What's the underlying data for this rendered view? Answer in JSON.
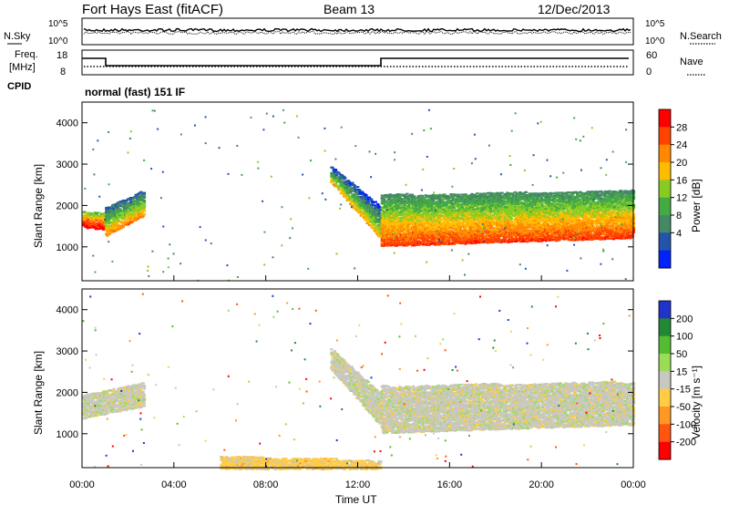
{
  "header": {
    "station": "Fort Hays East (fitACF)",
    "beam": "Beam 13",
    "date": "12/Dec/2013"
  },
  "noise_panel": {
    "left_label": "N.Sky",
    "right_label": "N.Search",
    "left_ticks": [
      "10^5",
      "10^0"
    ],
    "right_ticks": [
      "10^5",
      "10^0"
    ]
  },
  "freq_panel": {
    "left_label_1": "Freq.",
    "left_label_2": "[MHz]",
    "right_label": "Nave",
    "left_ticks": [
      "18",
      "8"
    ],
    "right_ticks": [
      "60",
      "0"
    ]
  },
  "cpid": {
    "label": "CPID",
    "value": "normal (fast) 151 IF"
  },
  "colorbars": {
    "power": {
      "title": "Power [dB]",
      "ticks": [
        "28",
        "24",
        "20",
        "16",
        "12",
        "8",
        "4"
      ],
      "colors": [
        "#ff0000",
        "#ff4400",
        "#ff8800",
        "#ffbb00",
        "#88cc22",
        "#44aa44",
        "#448866",
        "#2255aa",
        "#0022ff"
      ]
    },
    "velocity": {
      "title": "Velocity [m s⁻¹]",
      "ticks": [
        "200",
        "100",
        "50",
        "15",
        "-15",
        "-50",
        "-100",
        "-200"
      ],
      "colors": [
        "#2233cc",
        "#228833",
        "#55bb33",
        "#99dd55",
        "#c8c8c0",
        "#ffcc44",
        "#ff9922",
        "#ff5511",
        "#ff0000"
      ]
    }
  },
  "axes": {
    "ylabel": "Slant Range [km]",
    "xlabel": "Time UT",
    "yticks": [
      "4000",
      "3000",
      "2000",
      "1000"
    ],
    "xticks": [
      "00:00",
      "04:00",
      "08:00",
      "12:00",
      "16:00",
      "20:00",
      "00:00"
    ]
  },
  "chart_data": [
    {
      "type": "heatmap",
      "title": "",
      "quantity": "Power [dB]",
      "xlabel": "",
      "ylabel": "Slant Range [km]",
      "x_range_hours": [
        0,
        24
      ],
      "ylim": [
        180,
        4500
      ],
      "color_range": [
        0,
        30
      ],
      "bands": [
        {
          "x": [
            0.0,
            1.0
          ],
          "y_low": [
            1500,
            1450
          ],
          "y_high": [
            1900,
            1850
          ],
          "value": 22
        },
        {
          "x": [
            1.0,
            2.7
          ],
          "y_low": [
            1300,
            1800
          ],
          "y_high": [
            2000,
            2400
          ],
          "value": 14
        },
        {
          "x": [
            10.8,
            13.0
          ],
          "y_low": [
            2600,
            1200
          ],
          "y_high": [
            3000,
            2000
          ],
          "value": 12
        },
        {
          "x": [
            13.0,
            24.0
          ],
          "y_low": [
            1050,
            1250
          ],
          "y_high": [
            2300,
            2400
          ],
          "value": 18
        }
      ]
    },
    {
      "type": "heatmap",
      "title": "",
      "quantity": "Velocity [m s-1]",
      "xlabel": "Time UT",
      "ylabel": "Slant Range [km]",
      "x_range_hours": [
        0,
        24
      ],
      "ylim": [
        180,
        4500
      ],
      "color_range": [
        -200,
        200
      ],
      "bands": [
        {
          "x": [
            0.0,
            2.7
          ],
          "y_low": [
            1400,
            1700
          ],
          "y_high": [
            2000,
            2300
          ],
          "value": 0
        },
        {
          "x": [
            10.8,
            13.0
          ],
          "y_low": [
            2600,
            1200
          ],
          "y_high": [
            3100,
            2000
          ],
          "value": 0
        },
        {
          "x": [
            13.0,
            24.0
          ],
          "y_low": [
            1050,
            1250
          ],
          "y_high": [
            2200,
            2300
          ],
          "value": 0
        },
        {
          "x": [
            6.0,
            13.0
          ],
          "y_low": [
            180,
            180
          ],
          "y_high": [
            500,
            400
          ],
          "value": -40
        }
      ]
    }
  ]
}
